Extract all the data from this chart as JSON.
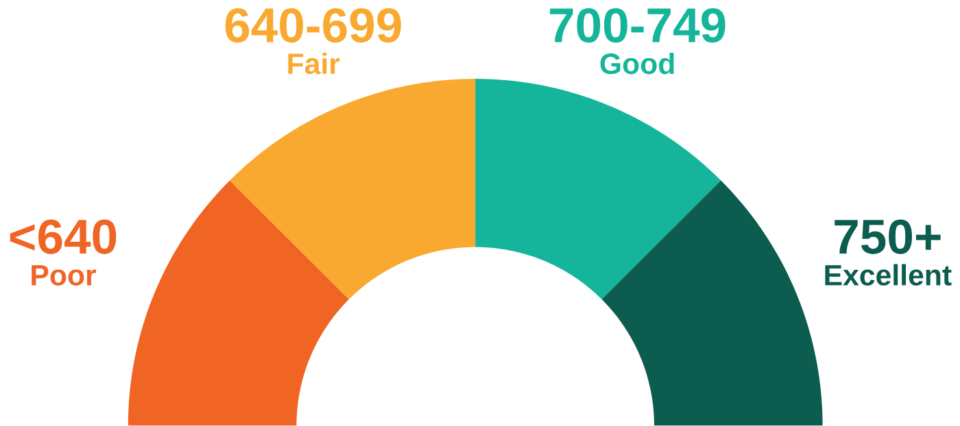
{
  "chart_data": {
    "type": "donut",
    "categories": [
      "Poor",
      "Fair",
      "Good",
      "Excellent"
    ],
    "values": [
      25,
      25,
      25,
      25
    ],
    "value_labels": [
      "<640",
      "640-699",
      "700-749",
      "750+"
    ],
    "colors": [
      "#f06424",
      "#f9a92f",
      "#14b59a",
      "#0c5c4f"
    ]
  }
}
